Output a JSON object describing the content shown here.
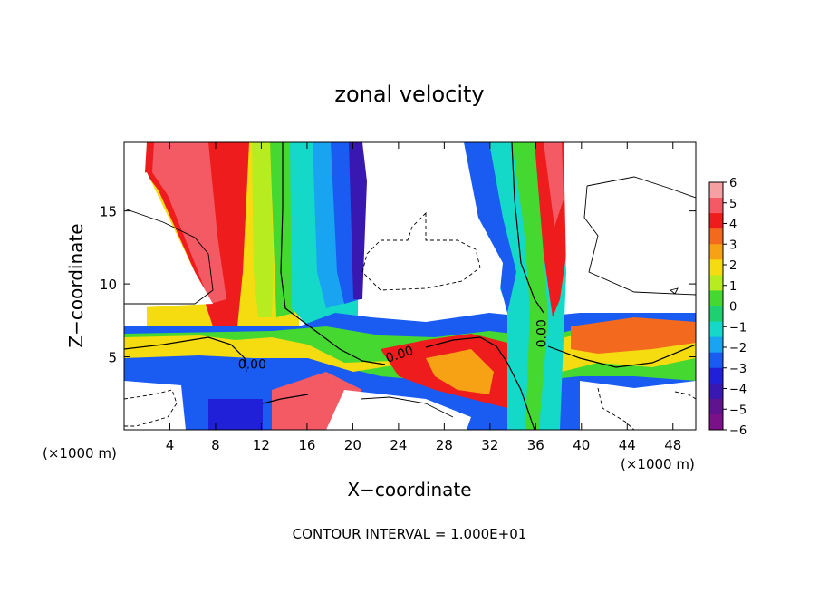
{
  "chart_data": {
    "type": "heatmap",
    "title": "zonal velocity",
    "xlabel": "X−coordinate",
    "ylabel": "Z−coordinate",
    "x_unit_left": "(×1000 m)",
    "x_unit_right": "(×1000 m)",
    "footer": "CONTOUR INTERVAL = 1.000E+01",
    "xlim": [
      0,
      50
    ],
    "ylim": [
      0,
      19.7
    ],
    "xticks": [
      4,
      8,
      12,
      16,
      20,
      24,
      28,
      32,
      36,
      40,
      44,
      48
    ],
    "yticks": [
      5,
      10,
      15
    ],
    "contour_labels": [
      {
        "text": "0.00",
        "x": 11.2,
        "y": 4.2,
        "angle": 0
      },
      {
        "text": "0.00",
        "x": 24.2,
        "y": 4.9,
        "angle": -18
      },
      {
        "text": "0.00",
        "x": 36.9,
        "y": 6.6,
        "angle": -90
      }
    ],
    "colorbar": {
      "ticks": [
        "6",
        "5",
        "4",
        "3",
        "2",
        "1",
        "0",
        "−1",
        "−2",
        "−3",
        "−4",
        "−5",
        "−6"
      ],
      "colors": [
        "#f6a0a4",
        "#f45a64",
        "#ee1c1c",
        "#f36a1e",
        "#f7a215",
        "#f4dc10",
        "#b6ec20",
        "#44d830",
        "#1ed070",
        "#14d8c8",
        "#18a4f0",
        "#1a5cf2",
        "#1f20d8",
        "#3818b0",
        "#60138e",
        "#7a1188"
      ]
    }
  }
}
